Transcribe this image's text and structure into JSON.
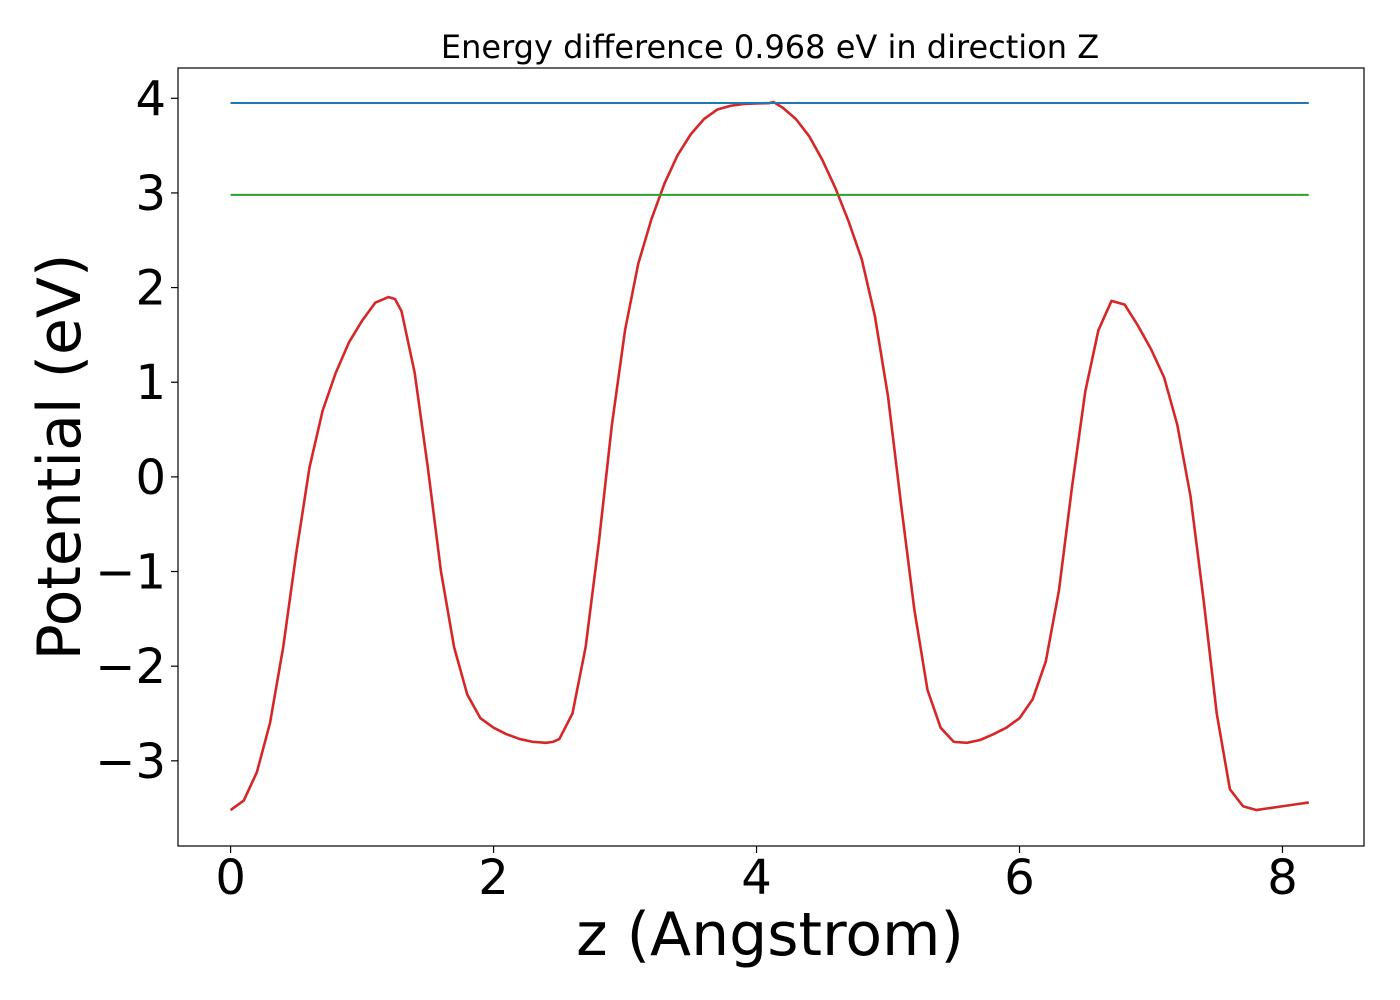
{
  "chart_data": {
    "type": "line",
    "title": "Energy difference 0.968 eV in direction Z",
    "xlabel": "z (Angstrom)",
    "ylabel": "Potential (eV)",
    "xlim": [
      -0.4,
      8.62
    ],
    "ylim": [
      -3.9,
      4.32
    ],
    "xticks": [
      0,
      2,
      4,
      6,
      8
    ],
    "xtick_labels": [
      "0",
      "2",
      "4",
      "6",
      "8"
    ],
    "yticks": [
      -3,
      -2,
      -1,
      0,
      1,
      2,
      3,
      4
    ],
    "ytick_labels": [
      "−3",
      "−2",
      "−1",
      "0",
      "1",
      "2",
      "3",
      "4"
    ],
    "grid": false,
    "legend": "none",
    "series": [
      {
        "color": "#d62728",
        "x": [
          0,
          0.1,
          0.2,
          0.3,
          0.4,
          0.5,
          0.6,
          0.7,
          0.8,
          0.9,
          1.0,
          1.1,
          1.2,
          1.25,
          1.3,
          1.4,
          1.5,
          1.6,
          1.7,
          1.8,
          1.9,
          2.0,
          2.1,
          2.2,
          2.3,
          2.4,
          2.45,
          2.5,
          2.6,
          2.7,
          2.8,
          2.9,
          3.0,
          3.1,
          3.2,
          3.3,
          3.4,
          3.5,
          3.6,
          3.7,
          3.8,
          3.9,
          4.0,
          4.1,
          4.13,
          4.2,
          4.3,
          4.4,
          4.5,
          4.6,
          4.7,
          4.8,
          4.9,
          5.0,
          5.1,
          5.2,
          5.3,
          5.4,
          5.5,
          5.6,
          5.7,
          5.8,
          5.9,
          6.0,
          6.1,
          6.2,
          6.3,
          6.4,
          6.5,
          6.6,
          6.7,
          6.8,
          6.9,
          7.0,
          7.1,
          7.2,
          7.3,
          7.4,
          7.5,
          7.6,
          7.7,
          7.8,
          7.9,
          8.0,
          8.1,
          8.2
        ],
        "y": [
          -3.52,
          -3.42,
          -3.12,
          -2.6,
          -1.8,
          -0.8,
          0.1,
          0.7,
          1.1,
          1.42,
          1.65,
          1.84,
          1.9,
          1.88,
          1.75,
          1.1,
          0.1,
          -1.0,
          -1.8,
          -2.3,
          -2.55,
          -2.65,
          -2.72,
          -2.77,
          -2.8,
          -2.81,
          -2.8,
          -2.77,
          -2.5,
          -1.8,
          -0.7,
          0.55,
          1.55,
          2.25,
          2.72,
          3.1,
          3.4,
          3.62,
          3.78,
          3.88,
          3.92,
          3.94,
          3.945,
          3.95,
          3.96,
          3.9,
          3.78,
          3.6,
          3.35,
          3.05,
          2.7,
          2.3,
          1.7,
          0.85,
          -0.3,
          -1.4,
          -2.25,
          -2.65,
          -2.8,
          -2.81,
          -2.78,
          -2.72,
          -2.65,
          -2.55,
          -2.35,
          -1.95,
          -1.2,
          -0.1,
          0.9,
          1.55,
          1.86,
          1.82,
          1.6,
          1.35,
          1.05,
          0.55,
          -0.2,
          -1.3,
          -2.5,
          -3.3,
          -3.48,
          -3.52,
          -3.5,
          -3.48,
          -3.46,
          -3.44
        ]
      },
      {
        "color": "#1f77b4",
        "x": [
          0,
          8.2
        ],
        "y": [
          3.95,
          3.95
        ]
      },
      {
        "color": "#2ca02c",
        "x": [
          0,
          8.2
        ],
        "y": [
          2.98,
          2.98
        ]
      }
    ]
  }
}
